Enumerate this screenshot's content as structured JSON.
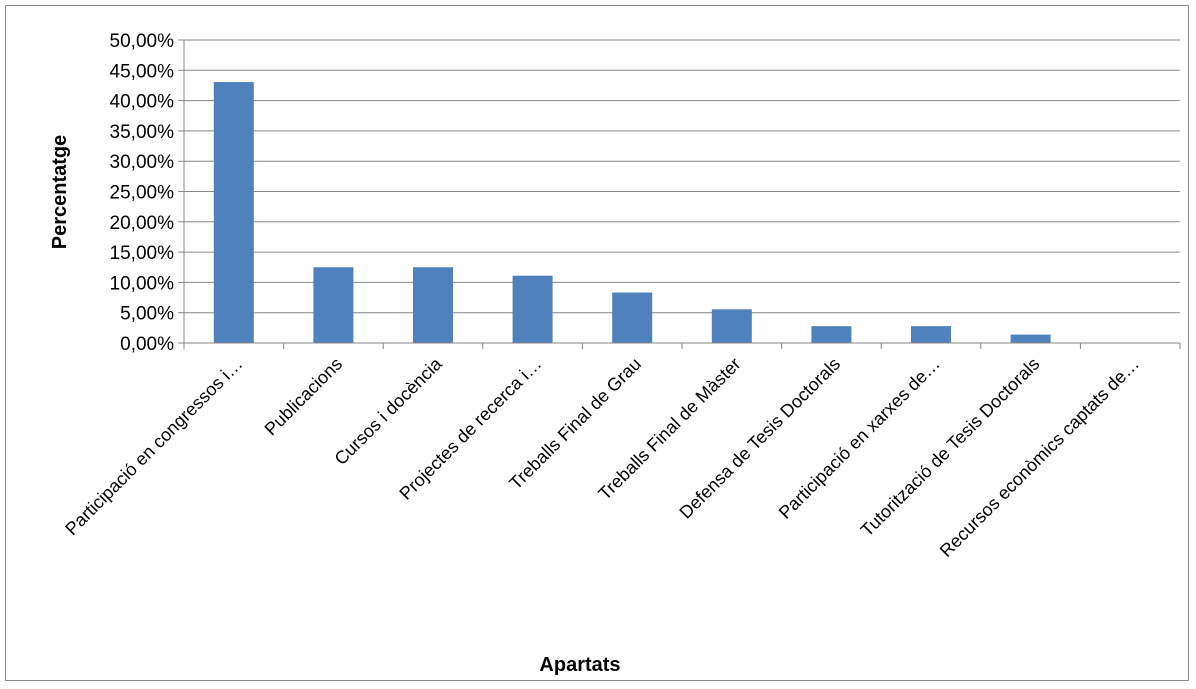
{
  "chart_data": {
    "type": "bar",
    "title": "",
    "xlabel": "Apartats",
    "ylabel": "Percentatge",
    "ylim": [
      0,
      50
    ],
    "yticks": [
      "0,00%",
      "5,00%",
      "10,00%",
      "15,00%",
      "20,00%",
      "25,00%",
      "30,00%",
      "35,00%",
      "40,00%",
      "45,00%",
      "50,00%"
    ],
    "grid": true,
    "legend": "none",
    "bar_color": "#4f81bd",
    "categories": [
      "Participació en congressos i…",
      "Publicacions",
      "Cursos i docència",
      "Projectes de recerca i…",
      "Treballs Final de Grau",
      "Treballs Final de Màster",
      "Defensa de Tesis Doctorals",
      "Participació en xarxes de…",
      "Tutorització de Tesis Doctorals",
      "Recursos econòmics captats de…"
    ],
    "values": [
      43.06,
      12.5,
      12.5,
      11.11,
      8.33,
      5.56,
      2.78,
      2.78,
      1.39,
      0
    ]
  }
}
